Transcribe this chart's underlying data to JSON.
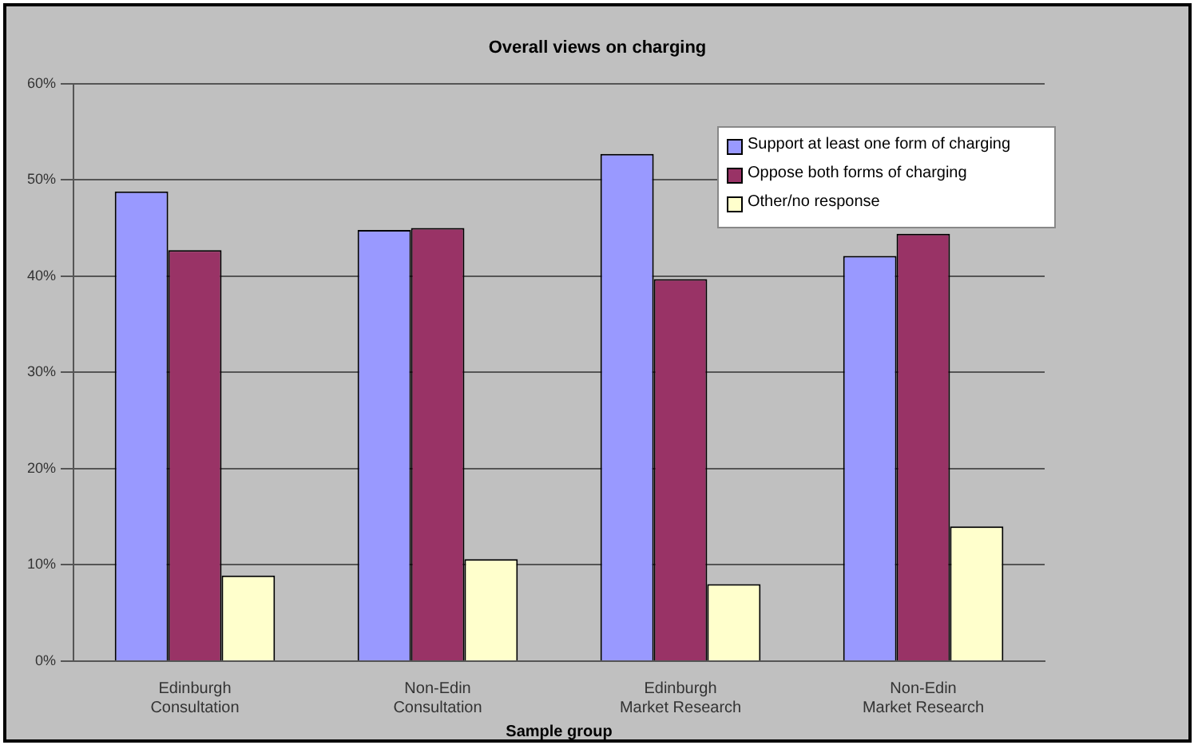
{
  "chart_data": {
    "type": "bar",
    "title": "Overall views on charging",
    "xlabel": "Sample group",
    "categories": [
      "Edinburgh\nConsultation",
      "Non-Edin\nConsultation",
      "Edinburgh\nMarket Research",
      "Non-Edin\nMarket Research"
    ],
    "series": [
      {
        "name": "Support at least one form of charging",
        "color": "#9999ff",
        "values": [
          48.8,
          44.8,
          52.7,
          42.1
        ]
      },
      {
        "name": "Oppose both forms of charging",
        "color": "#993366",
        "values": [
          42.7,
          45.0,
          39.7,
          44.4
        ]
      },
      {
        "name": "Other/no response",
        "color": "#ffffcc",
        "values": [
          8.9,
          10.6,
          8.0,
          14.0
        ]
      }
    ],
    "ylim": [
      0,
      60
    ],
    "yticks": [
      {
        "value": 0,
        "label": "0%"
      },
      {
        "value": 10,
        "label": "10%"
      },
      {
        "value": 20,
        "label": "20%"
      },
      {
        "value": 30,
        "label": "30%"
      },
      {
        "value": 40,
        "label": "40%"
      },
      {
        "value": 50,
        "label": "50%"
      },
      {
        "value": 60,
        "label": "60%"
      }
    ],
    "grid": "y",
    "legend": "top right"
  }
}
